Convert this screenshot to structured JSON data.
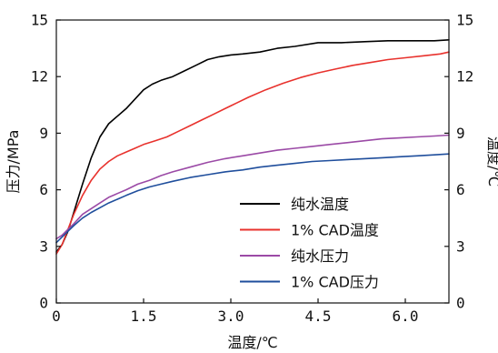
{
  "chart_data": {
    "type": "line",
    "xlabel": "温度/℃",
    "ylabel_left": "压力/MPa",
    "ylabel_right": "温度/℃",
    "xlim": [
      0,
      6.75
    ],
    "ylim_left": [
      0,
      15
    ],
    "ylim_right": [
      0,
      15
    ],
    "x_ticks": [
      0,
      1.5,
      3.0,
      4.5,
      6.0
    ],
    "x_tick_labels": [
      "0",
      "1.5",
      "3.0",
      "4.5",
      "6.0"
    ],
    "y_ticks": [
      0,
      3,
      6,
      9,
      12,
      15
    ],
    "y_tick_labels": [
      "0",
      "3",
      "6",
      "9",
      "12",
      "15"
    ],
    "grid": false,
    "legend_position": "center-right",
    "series": [
      {
        "name": "纯水温度",
        "color": "#000000",
        "x": [
          0,
          0.1,
          0.2,
          0.3,
          0.45,
          0.6,
          0.75,
          0.9,
          1.05,
          1.2,
          1.35,
          1.5,
          1.65,
          1.8,
          2.0,
          2.2,
          2.4,
          2.6,
          2.8,
          3.0,
          3.2,
          3.5,
          3.8,
          4.1,
          4.5,
          4.9,
          5.3,
          5.7,
          6.1,
          6.5,
          6.75
        ],
        "y": [
          2.7,
          3.1,
          3.8,
          4.8,
          6.3,
          7.7,
          8.8,
          9.5,
          9.9,
          10.3,
          10.8,
          11.3,
          11.6,
          11.8,
          12.0,
          12.3,
          12.6,
          12.9,
          13.05,
          13.15,
          13.2,
          13.3,
          13.5,
          13.6,
          13.8,
          13.8,
          13.85,
          13.9,
          13.9,
          13.9,
          13.95
        ]
      },
      {
        "name": "1% CAD温度",
        "color": "#e8322d",
        "x": [
          0,
          0.1,
          0.2,
          0.3,
          0.45,
          0.6,
          0.75,
          0.9,
          1.05,
          1.2,
          1.35,
          1.5,
          1.7,
          1.9,
          2.1,
          2.3,
          2.5,
          2.7,
          2.9,
          3.1,
          3.3,
          3.6,
          3.9,
          4.2,
          4.5,
          4.8,
          5.1,
          5.4,
          5.7,
          6.0,
          6.3,
          6.6,
          6.75
        ],
        "y": [
          2.6,
          3.1,
          3.9,
          4.7,
          5.7,
          6.5,
          7.1,
          7.5,
          7.8,
          8.0,
          8.2,
          8.4,
          8.6,
          8.8,
          9.1,
          9.4,
          9.7,
          10.0,
          10.3,
          10.6,
          10.9,
          11.3,
          11.65,
          11.95,
          12.2,
          12.4,
          12.6,
          12.75,
          12.9,
          13.0,
          13.1,
          13.2,
          13.3
        ]
      },
      {
        "name": "纯水压力",
        "color": "#9b4aa6",
        "x": [
          0,
          0.1,
          0.2,
          0.3,
          0.45,
          0.6,
          0.75,
          0.9,
          1.05,
          1.2,
          1.4,
          1.6,
          1.8,
          2.0,
          2.3,
          2.6,
          2.9,
          3.2,
          3.5,
          3.8,
          4.1,
          4.4,
          4.7,
          5.0,
          5.3,
          5.6,
          5.9,
          6.2,
          6.5,
          6.75
        ],
        "y": [
          3.4,
          3.6,
          3.9,
          4.2,
          4.7,
          5.0,
          5.3,
          5.6,
          5.8,
          6.0,
          6.3,
          6.5,
          6.75,
          6.95,
          7.2,
          7.45,
          7.65,
          7.8,
          7.95,
          8.1,
          8.2,
          8.3,
          8.4,
          8.5,
          8.6,
          8.7,
          8.75,
          8.8,
          8.85,
          8.9
        ]
      },
      {
        "name": "1% CAD压力",
        "color": "#1f4e9c",
        "x": [
          0,
          0.1,
          0.2,
          0.3,
          0.45,
          0.6,
          0.75,
          0.9,
          1.05,
          1.2,
          1.4,
          1.6,
          1.8,
          2.0,
          2.3,
          2.6,
          2.9,
          3.2,
          3.5,
          3.8,
          4.1,
          4.4,
          4.7,
          5.0,
          5.3,
          5.6,
          5.9,
          6.2,
          6.5,
          6.75
        ],
        "y": [
          3.2,
          3.5,
          3.8,
          4.1,
          4.5,
          4.8,
          5.05,
          5.3,
          5.5,
          5.7,
          5.95,
          6.15,
          6.3,
          6.45,
          6.65,
          6.8,
          6.95,
          7.05,
          7.2,
          7.3,
          7.4,
          7.5,
          7.55,
          7.6,
          7.65,
          7.7,
          7.75,
          7.8,
          7.85,
          7.9
        ]
      }
    ]
  }
}
